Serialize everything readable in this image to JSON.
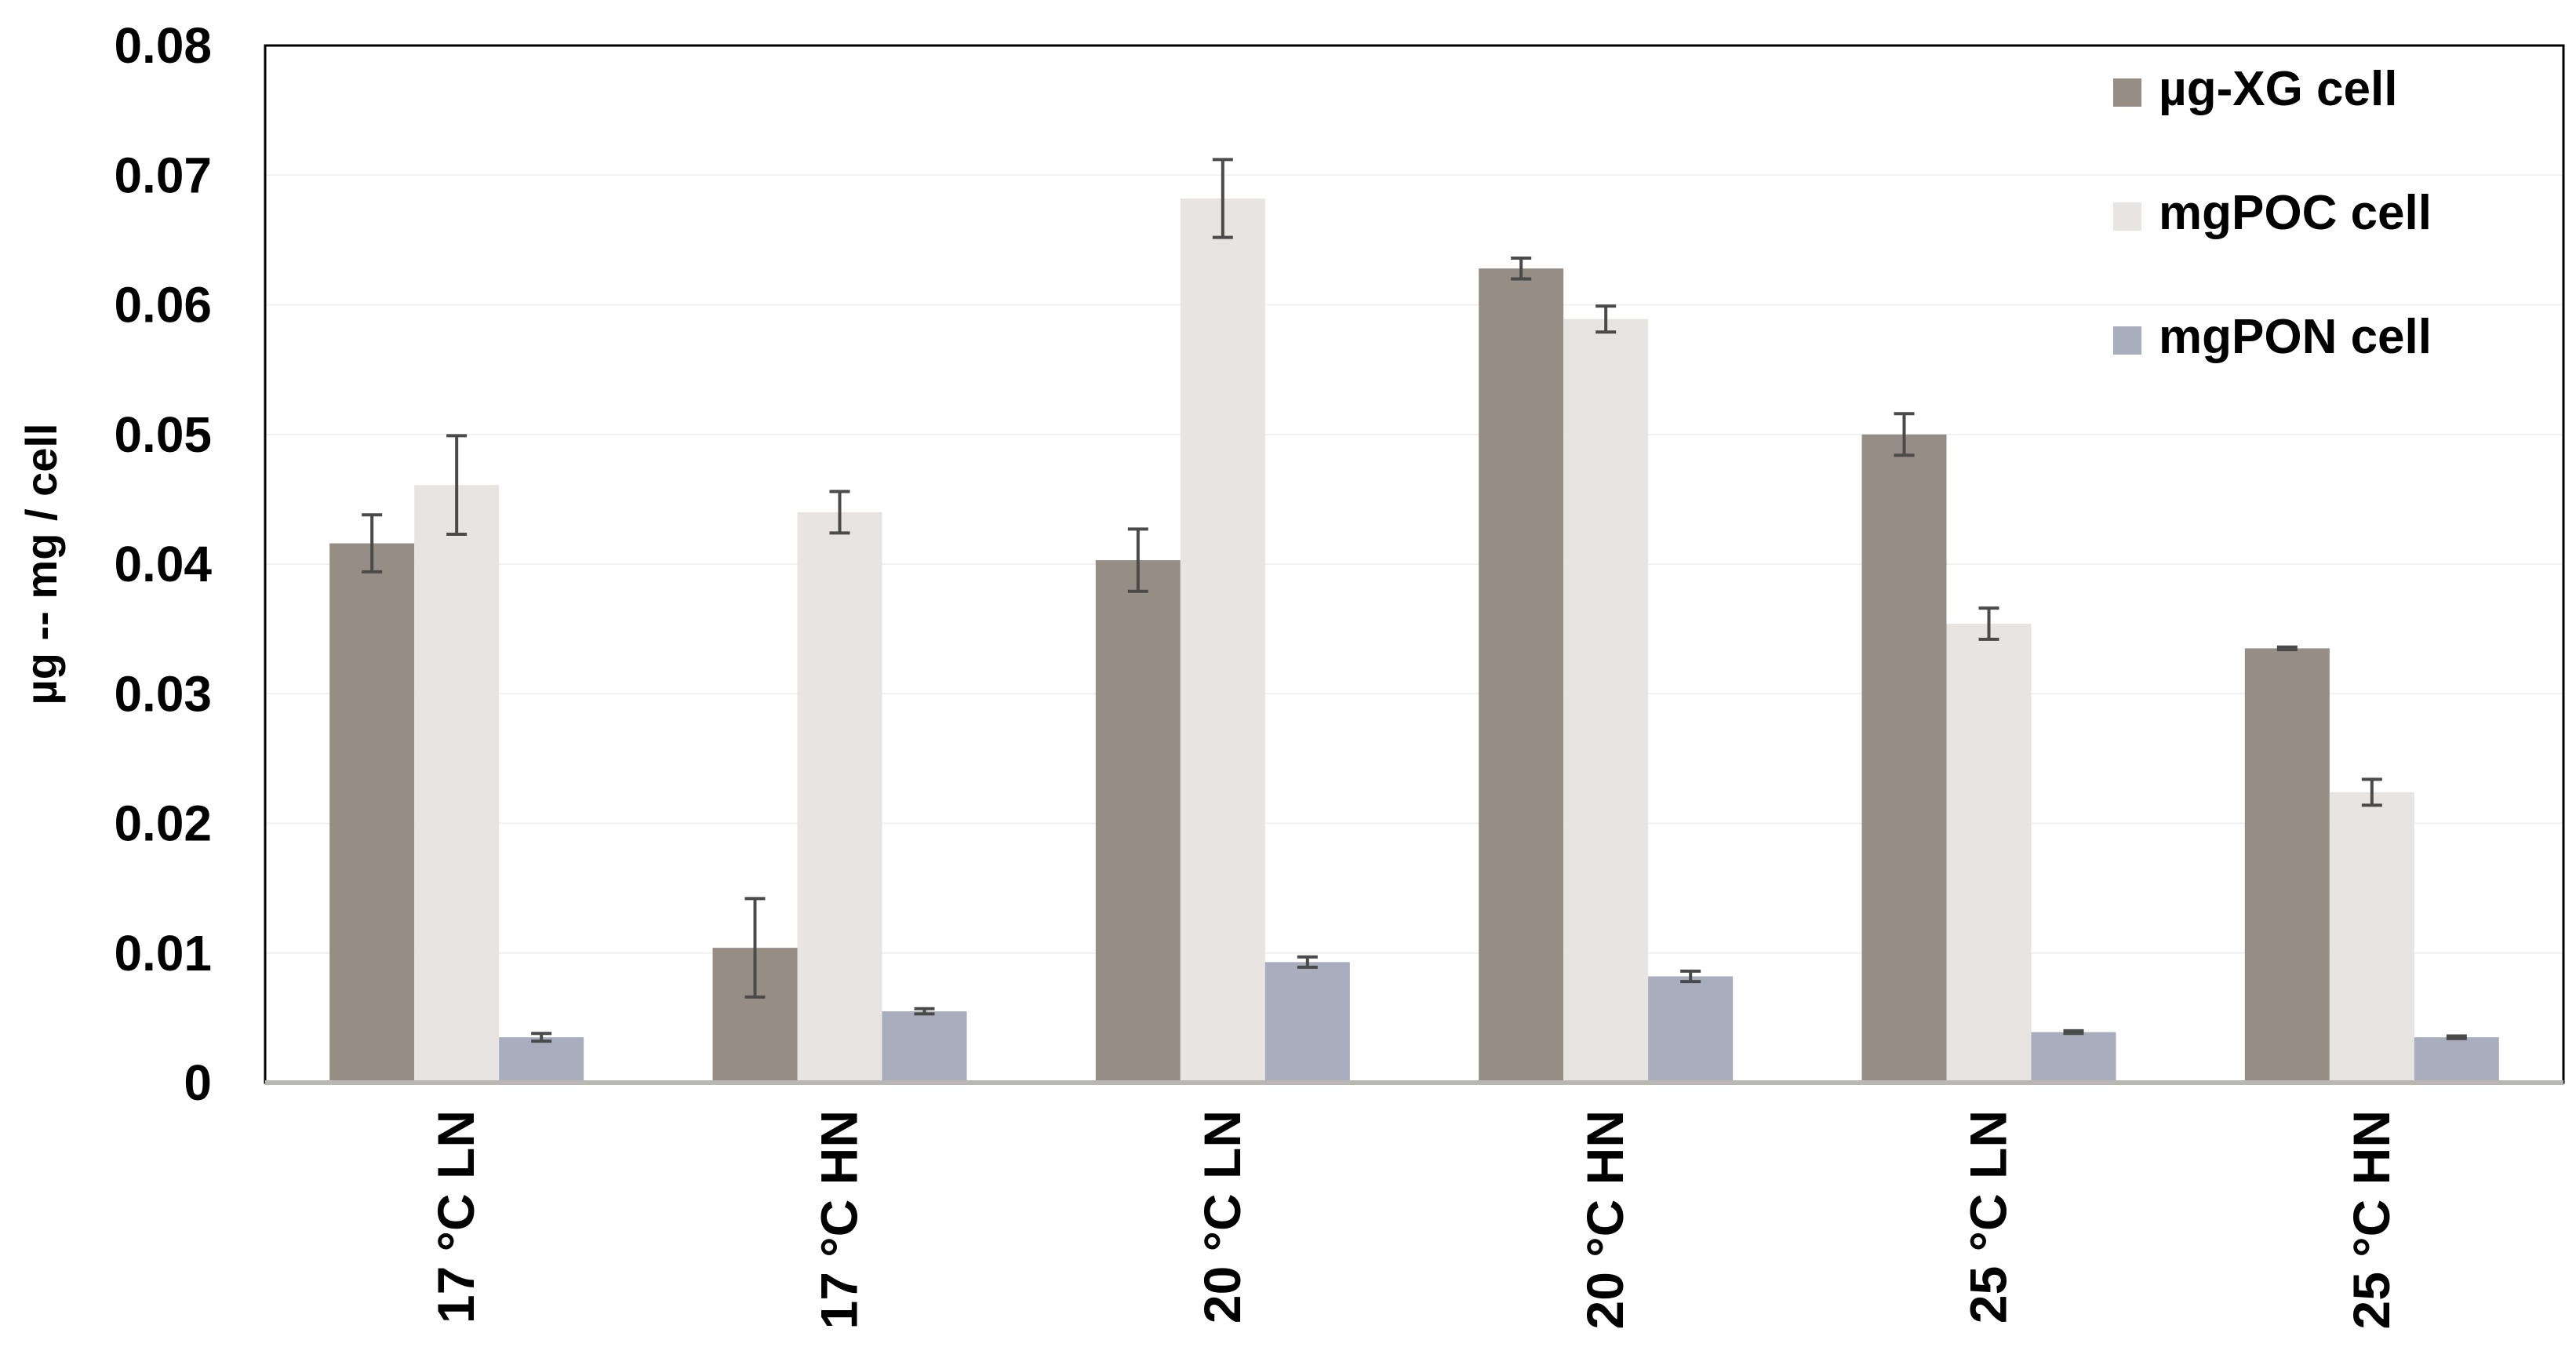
{
  "chart_data": {
    "type": "bar",
    "ylabel": "µg -- mg / cell",
    "xlabel": "",
    "ylim": [
      0,
      0.08
    ],
    "yticks": [
      0,
      0.01,
      0.02,
      0.03,
      0.04,
      0.05,
      0.06,
      0.07,
      0.08
    ],
    "ytick_labels": [
      "0",
      "0.01",
      "0.02",
      "0.03",
      "0.04",
      "0.05",
      "0.06",
      "0.07",
      "0.08"
    ],
    "grid": true,
    "legend_position": "top-right",
    "categories": [
      "17 °C LN",
      "17 °C HN",
      "20 °C LN",
      "20 °C HN",
      "25 °C LN",
      "25 °C HN"
    ],
    "series": [
      {
        "name": "µg-XG cell",
        "color": "#968d85",
        "values": [
          0.0416,
          0.0104,
          0.0403,
          0.0628,
          0.05,
          0.0335
        ],
        "errors": [
          0.0022,
          0.0038,
          0.0024,
          0.0008,
          0.0016,
          0.0001
        ]
      },
      {
        "name": "mgPOC cell",
        "color": "#e7e4e2",
        "values": [
          0.0461,
          0.044,
          0.0682,
          0.0589,
          0.0354,
          0.0224
        ],
        "errors": [
          0.0038,
          0.0016,
          0.003,
          0.001,
          0.0012,
          0.001
        ]
      },
      {
        "name": "mgPON cell",
        "color": "#a9aebe",
        "values": [
          0.0035,
          0.0055,
          0.0093,
          0.0082,
          0.0039,
          0.0035
        ],
        "errors": [
          0.0003,
          0.0002,
          0.0004,
          0.0004,
          0.0001,
          0.0001
        ]
      }
    ]
  }
}
